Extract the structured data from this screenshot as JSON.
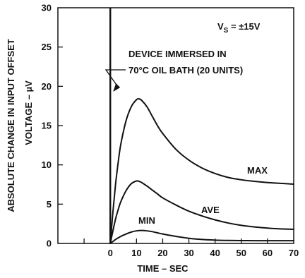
{
  "chart_data": {
    "type": "line",
    "xlabel": "TIME – SEC",
    "ylabel_line1": "ABSOLUTE CHANGE IN INPUT OFFSET",
    "ylabel_line2": "VOLTAGE – µV",
    "xlim": [
      -20,
      70
    ],
    "ylim": [
      0,
      30
    ],
    "x_ticks": [
      0,
      10,
      20,
      30,
      40,
      50,
      60,
      70
    ],
    "x_tick_labels": [
      "0",
      "10",
      "20",
      "30",
      "40",
      "50",
      "60",
      "70"
    ],
    "y_ticks": [
      0,
      5,
      10,
      15,
      20,
      25,
      30
    ],
    "y_tick_labels": [
      "0",
      "5",
      "10",
      "15",
      "20",
      "25",
      "30"
    ],
    "grid": false,
    "event_marker": {
      "x": 0,
      "label_line1": "DEVICE IMMERSED IN",
      "label_line2": "70°C OIL BATH (20 UNITS)"
    },
    "condition_text": {
      "prefix": "V",
      "subscript": "S",
      "suffix": " = ±15V"
    },
    "series": [
      {
        "name": "MAX",
        "x": [
          0,
          1,
          2,
          3,
          4,
          6,
          8,
          10,
          11,
          12,
          14,
          16,
          18,
          20,
          25,
          30,
          35,
          40,
          45,
          50,
          55,
          60,
          65,
          70
        ],
        "y": [
          0,
          4.0,
          7.5,
          10.3,
          12.6,
          15.6,
          17.4,
          18.3,
          18.4,
          18.2,
          17.4,
          16.2,
          15.0,
          14.0,
          12.0,
          10.6,
          9.6,
          8.9,
          8.4,
          8.1,
          7.9,
          7.75,
          7.65,
          7.55
        ]
      },
      {
        "name": "AVE",
        "x": [
          0,
          1,
          2,
          3,
          4,
          6,
          8,
          10,
          11,
          12,
          14,
          16,
          18,
          20,
          25,
          30,
          35,
          40,
          45,
          50,
          55,
          60,
          65,
          70
        ],
        "y": [
          0,
          1.6,
          3.1,
          4.3,
          5.3,
          6.7,
          7.6,
          7.95,
          7.9,
          7.75,
          7.3,
          6.8,
          6.3,
          5.8,
          4.9,
          4.1,
          3.5,
          3.0,
          2.6,
          2.3,
          2.1,
          1.95,
          1.85,
          1.8
        ]
      },
      {
        "name": "MIN",
        "x": [
          0,
          1,
          2,
          4,
          6,
          8,
          10,
          12,
          14,
          16,
          18,
          20,
          25,
          30,
          35,
          40,
          45,
          50,
          55,
          60,
          65,
          70
        ],
        "y": [
          0,
          0.25,
          0.5,
          0.9,
          1.2,
          1.45,
          1.6,
          1.65,
          1.6,
          1.5,
          1.35,
          1.2,
          0.9,
          0.65,
          0.5,
          0.42,
          0.38,
          0.36,
          0.35,
          0.35,
          0.35,
          0.35
        ]
      }
    ]
  }
}
